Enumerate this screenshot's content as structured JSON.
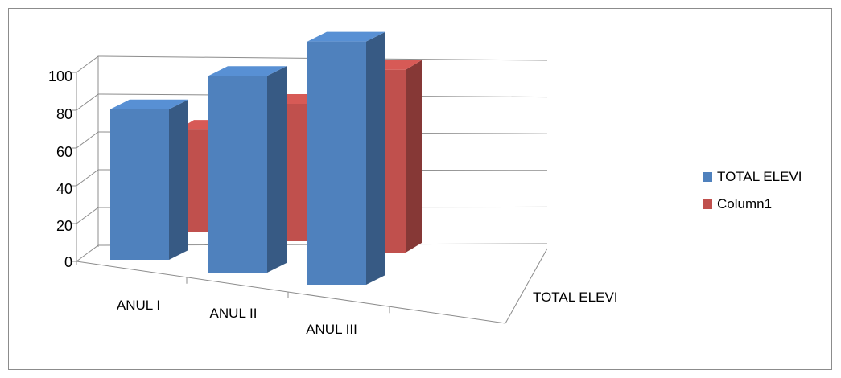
{
  "chart_data": {
    "type": "bar",
    "title": "",
    "xlabel": "",
    "ylabel": "",
    "categories": [
      "ANUL I",
      "ANUL II",
      "ANUL III"
    ],
    "depth_category": "TOTAL ELEVI",
    "ylim": [
      0,
      100
    ],
    "yticks": [
      "0",
      "20",
      "40",
      "60",
      "80",
      "100"
    ],
    "grid": true,
    "legend_position": "right",
    "series": [
      {
        "name": "TOTAL ELEVI",
        "color": "#4F81BD",
        "values": [
          52,
          68,
          84
        ]
      },
      {
        "name": "Column1",
        "color": "#C0504D",
        "values": [
          47,
          57,
          71
        ]
      }
    ]
  }
}
